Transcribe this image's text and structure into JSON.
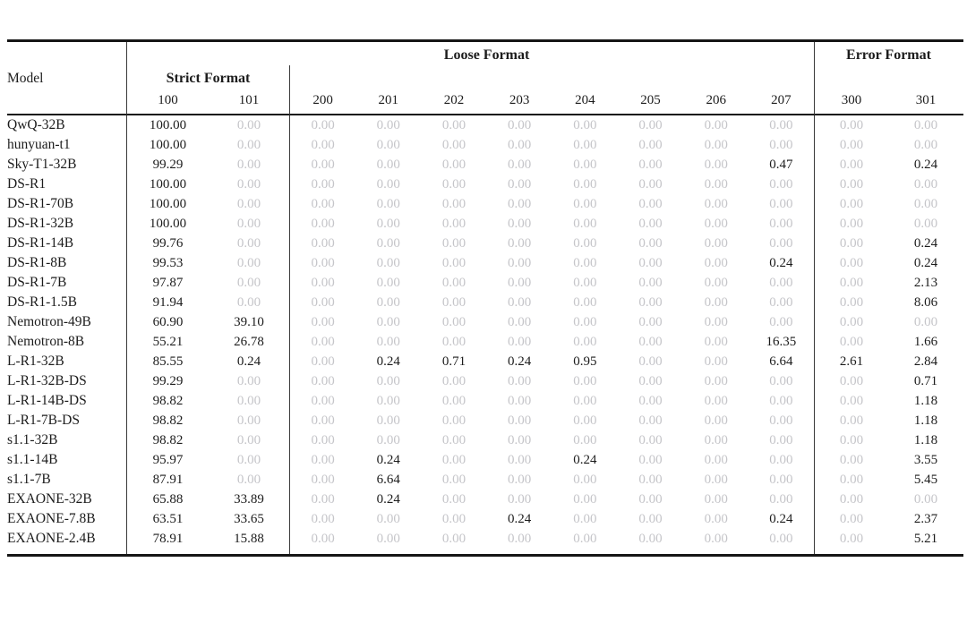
{
  "table": {
    "colors": {
      "text": "#1c1c1c",
      "zero_value": "#c5c5c9",
      "rule": "#161616",
      "divider": "#3a3a3a"
    },
    "header": {
      "model_label": "Model",
      "groups": [
        {
          "id": "strict",
          "label": "Strict Format",
          "columns": [
            "100",
            "101"
          ]
        },
        {
          "id": "loose",
          "label": "Loose Format",
          "columns": [
            "200",
            "201",
            "202",
            "203",
            "204",
            "205",
            "206",
            "207"
          ]
        },
        {
          "id": "error",
          "label": "Error Format",
          "columns": [
            "300",
            "301"
          ]
        }
      ]
    },
    "rows": [
      {
        "model": "QwQ-32B",
        "values": [
          "100.00",
          "0.00",
          "0.00",
          "0.00",
          "0.00",
          "0.00",
          "0.00",
          "0.00",
          "0.00",
          "0.00",
          "0.00",
          "0.00"
        ]
      },
      {
        "model": "hunyuan-t1",
        "values": [
          "100.00",
          "0.00",
          "0.00",
          "0.00",
          "0.00",
          "0.00",
          "0.00",
          "0.00",
          "0.00",
          "0.00",
          "0.00",
          "0.00"
        ]
      },
      {
        "model": "Sky-T1-32B",
        "values": [
          "99.29",
          "0.00",
          "0.00",
          "0.00",
          "0.00",
          "0.00",
          "0.00",
          "0.00",
          "0.00",
          "0.47",
          "0.00",
          "0.24"
        ]
      },
      {
        "model": "DS-R1",
        "values": [
          "100.00",
          "0.00",
          "0.00",
          "0.00",
          "0.00",
          "0.00",
          "0.00",
          "0.00",
          "0.00",
          "0.00",
          "0.00",
          "0.00"
        ]
      },
      {
        "model": "DS-R1-70B",
        "values": [
          "100.00",
          "0.00",
          "0.00",
          "0.00",
          "0.00",
          "0.00",
          "0.00",
          "0.00",
          "0.00",
          "0.00",
          "0.00",
          "0.00"
        ]
      },
      {
        "model": "DS-R1-32B",
        "values": [
          "100.00",
          "0.00",
          "0.00",
          "0.00",
          "0.00",
          "0.00",
          "0.00",
          "0.00",
          "0.00",
          "0.00",
          "0.00",
          "0.00"
        ]
      },
      {
        "model": "DS-R1-14B",
        "values": [
          "99.76",
          "0.00",
          "0.00",
          "0.00",
          "0.00",
          "0.00",
          "0.00",
          "0.00",
          "0.00",
          "0.00",
          "0.00",
          "0.24"
        ]
      },
      {
        "model": "DS-R1-8B",
        "values": [
          "99.53",
          "0.00",
          "0.00",
          "0.00",
          "0.00",
          "0.00",
          "0.00",
          "0.00",
          "0.00",
          "0.24",
          "0.00",
          "0.24"
        ]
      },
      {
        "model": "DS-R1-7B",
        "values": [
          "97.87",
          "0.00",
          "0.00",
          "0.00",
          "0.00",
          "0.00",
          "0.00",
          "0.00",
          "0.00",
          "0.00",
          "0.00",
          "2.13"
        ]
      },
      {
        "model": "DS-R1-1.5B",
        "values": [
          "91.94",
          "0.00",
          "0.00",
          "0.00",
          "0.00",
          "0.00",
          "0.00",
          "0.00",
          "0.00",
          "0.00",
          "0.00",
          "8.06"
        ]
      },
      {
        "model": "Nemotron-49B",
        "values": [
          "60.90",
          "39.10",
          "0.00",
          "0.00",
          "0.00",
          "0.00",
          "0.00",
          "0.00",
          "0.00",
          "0.00",
          "0.00",
          "0.00"
        ]
      },
      {
        "model": "Nemotron-8B",
        "values": [
          "55.21",
          "26.78",
          "0.00",
          "0.00",
          "0.00",
          "0.00",
          "0.00",
          "0.00",
          "0.00",
          "16.35",
          "0.00",
          "1.66"
        ]
      },
      {
        "model": "L-R1-32B",
        "values": [
          "85.55",
          "0.24",
          "0.00",
          "0.24",
          "0.71",
          "0.24",
          "0.95",
          "0.00",
          "0.00",
          "6.64",
          "2.61",
          "2.84"
        ]
      },
      {
        "model": "L-R1-32B-DS",
        "values": [
          "99.29",
          "0.00",
          "0.00",
          "0.00",
          "0.00",
          "0.00",
          "0.00",
          "0.00",
          "0.00",
          "0.00",
          "0.00",
          "0.71"
        ]
      },
      {
        "model": "L-R1-14B-DS",
        "values": [
          "98.82",
          "0.00",
          "0.00",
          "0.00",
          "0.00",
          "0.00",
          "0.00",
          "0.00",
          "0.00",
          "0.00",
          "0.00",
          "1.18"
        ]
      },
      {
        "model": "L-R1-7B-DS",
        "values": [
          "98.82",
          "0.00",
          "0.00",
          "0.00",
          "0.00",
          "0.00",
          "0.00",
          "0.00",
          "0.00",
          "0.00",
          "0.00",
          "1.18"
        ]
      },
      {
        "model": "s1.1-32B",
        "values": [
          "98.82",
          "0.00",
          "0.00",
          "0.00",
          "0.00",
          "0.00",
          "0.00",
          "0.00",
          "0.00",
          "0.00",
          "0.00",
          "1.18"
        ]
      },
      {
        "model": "s1.1-14B",
        "values": [
          "95.97",
          "0.00",
          "0.00",
          "0.24",
          "0.00",
          "0.00",
          "0.24",
          "0.00",
          "0.00",
          "0.00",
          "0.00",
          "3.55"
        ]
      },
      {
        "model": "s1.1-7B",
        "values": [
          "87.91",
          "0.00",
          "0.00",
          "6.64",
          "0.00",
          "0.00",
          "0.00",
          "0.00",
          "0.00",
          "0.00",
          "0.00",
          "5.45"
        ]
      },
      {
        "model": "EXAONE-32B",
        "values": [
          "65.88",
          "33.89",
          "0.00",
          "0.24",
          "0.00",
          "0.00",
          "0.00",
          "0.00",
          "0.00",
          "0.00",
          "0.00",
          "0.00"
        ]
      },
      {
        "model": "EXAONE-7.8B",
        "values": [
          "63.51",
          "33.65",
          "0.00",
          "0.00",
          "0.00",
          "0.24",
          "0.00",
          "0.00",
          "0.00",
          "0.24",
          "0.00",
          "2.37"
        ]
      },
      {
        "model": "EXAONE-2.4B",
        "values": [
          "78.91",
          "15.88",
          "0.00",
          "0.00",
          "0.00",
          "0.00",
          "0.00",
          "0.00",
          "0.00",
          "0.00",
          "0.00",
          "5.21"
        ]
      }
    ]
  }
}
